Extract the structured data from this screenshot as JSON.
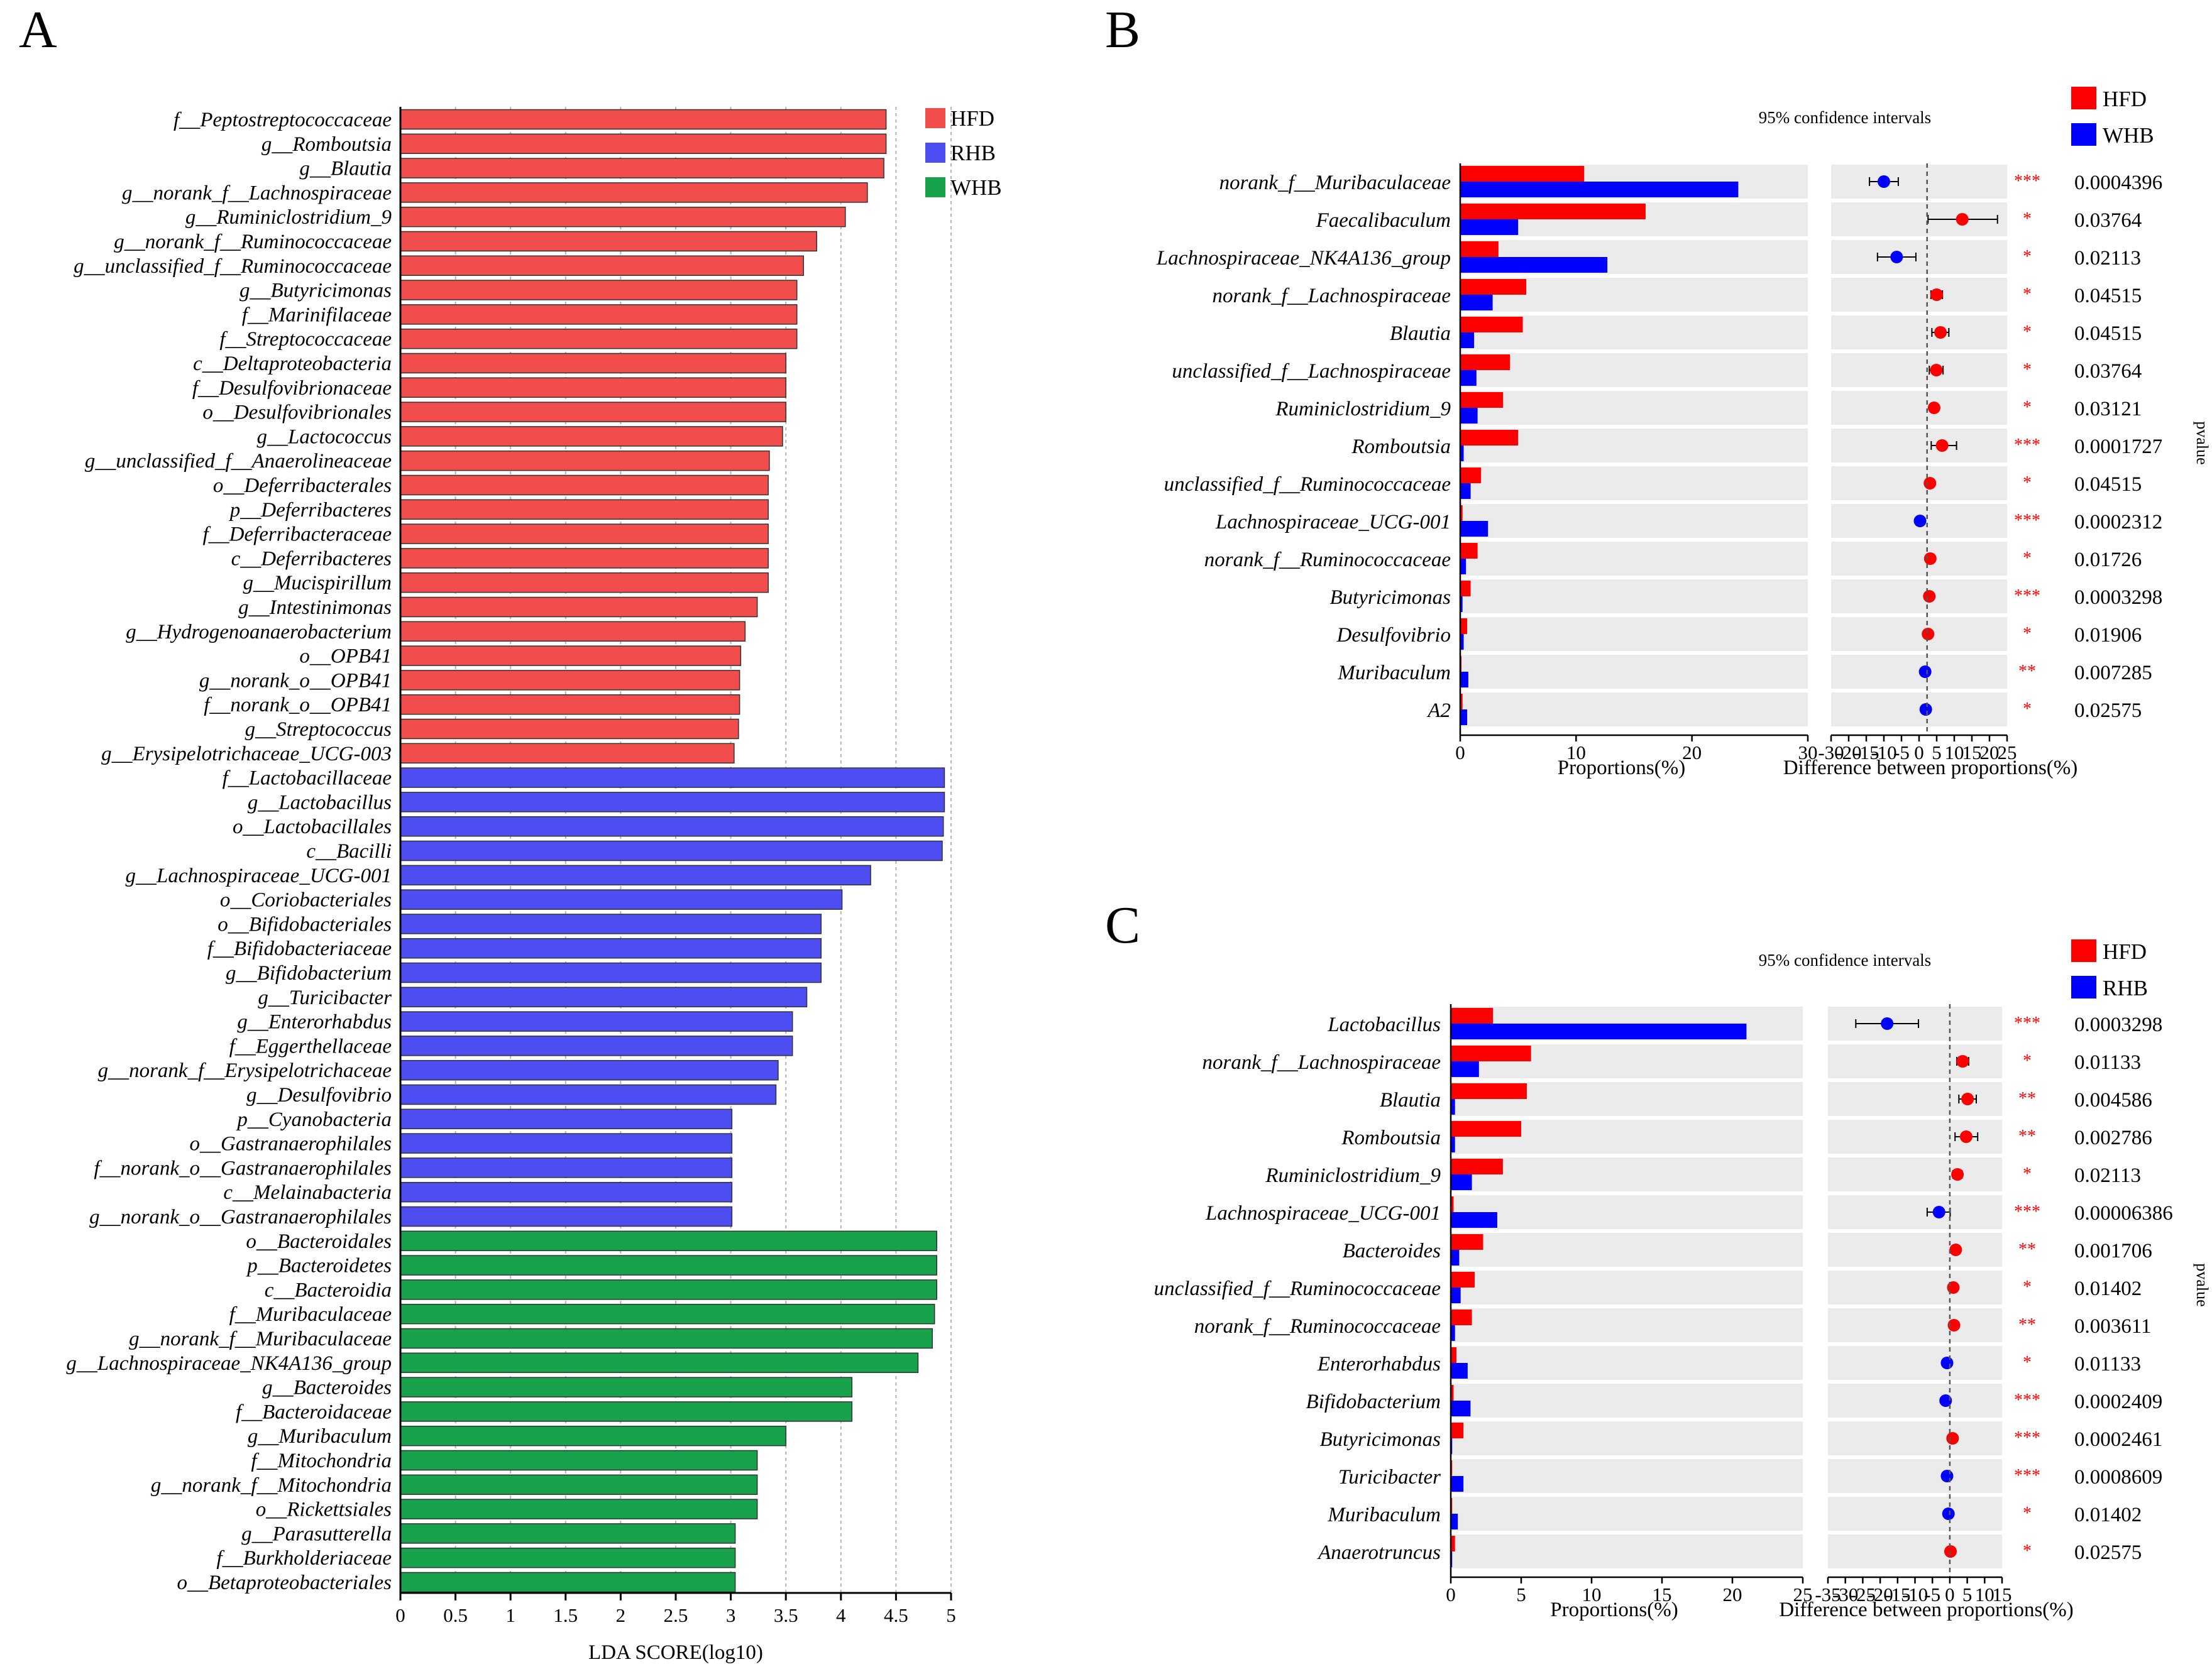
{
  "colors": {
    "HFD_A": "#f24d4d",
    "RHB_A": "#4d4df2",
    "WHB_A": "#18a24b",
    "HFD": "#ff0000",
    "RHB": "#0000ff",
    "WHB": "#0000ff",
    "stripe": "#ebebeb",
    "star": "#ff0000"
  },
  "chart_data": [
    {
      "panel": "A",
      "type": "bar",
      "orientation": "horizontal",
      "xlabel": "LDA SCORE(log10)",
      "xlim": [
        0,
        5
      ],
      "xticks": [
        "0",
        "0.5",
        "1",
        "1.5",
        "2",
        "2.5",
        "3",
        "3.5",
        "4",
        "4.5",
        "5"
      ],
      "grid": "vertical dashed",
      "legend": {
        "position": "top-right",
        "entries": [
          "HFD",
          "RHB",
          "WHB"
        ]
      },
      "series": [
        {
          "name": "HFD",
          "categories": [
            "f__Peptostreptococcaceae",
            "g__Romboutsia",
            "g__Blautia",
            "g__norank_f__Lachnospiraceae",
            "g__Ruminiclostridium_9",
            "g__norank_f__Ruminococcaceae",
            "g__unclassified_f__Ruminococcaceae",
            "g__Butyricimonas",
            "f__Marinifilaceae",
            "f__Streptococcaceae",
            "c__Deltaproteobacteria",
            "f__Desulfovibrionaceae",
            "o__Desulfovibrionales",
            "g__Lactococcus",
            "g__unclassified_f__Anaerolineaceae",
            "o__Deferribacterales",
            "p__Deferribacteres",
            "f__Deferribacteraceae",
            "c__Deferribacteres",
            "g__Mucispirillum",
            "g__Intestinimonas",
            "g__Hydrogenoanaerobacterium",
            "o__OPB41",
            "g__norank_o__OPB41",
            "f__norank_o__OPB41",
            "g__Streptococcus",
            "g__Erysipelotrichaceae_UCG-003"
          ],
          "values": [
            4.41,
            4.41,
            4.39,
            4.24,
            4.04,
            3.78,
            3.66,
            3.6,
            3.6,
            3.6,
            3.5,
            3.5,
            3.5,
            3.47,
            3.35,
            3.34,
            3.34,
            3.34,
            3.34,
            3.34,
            3.24,
            3.13,
            3.09,
            3.08,
            3.08,
            3.07,
            3.03
          ]
        },
        {
          "name": "RHB",
          "categories": [
            "f__Lactobacillaceae",
            "g__Lactobacillus",
            "o__Lactobacillales",
            "c__Bacilli",
            "g__Lachnospiraceae_UCG-001",
            "o__Coriobacteriales",
            "o__Bifidobacteriales",
            "f__Bifidobacteriaceae",
            "g__Bifidobacterium",
            "g__Turicibacter",
            "g__Enterorhabdus",
            "f__Eggerthellaceae",
            "g__norank_f__Erysipelotrichaceae",
            "g__Desulfovibrio",
            "p__Cyanobacteria",
            "o__Gastranaerophilales",
            "f__norank_o__Gastranaerophilales",
            "c__Melainabacteria",
            "g__norank_o__Gastranaerophilales"
          ],
          "values": [
            4.94,
            4.94,
            4.93,
            4.92,
            4.27,
            4.01,
            3.82,
            3.82,
            3.82,
            3.69,
            3.56,
            3.56,
            3.43,
            3.41,
            3.01,
            3.01,
            3.01,
            3.01,
            3.01
          ]
        },
        {
          "name": "WHB",
          "categories": [
            "o__Bacteroidales",
            "p__Bacteroidetes",
            "c__Bacteroidia",
            "f__Muribaculaceae",
            "g__norank_f__Muribaculaceae",
            "g__Lachnospiraceae_NK4A136_group",
            "g__Bacteroides",
            "f__Bacteroidaceae",
            "g__Muribaculum",
            "f__Mitochondria",
            "g__norank_f__Mitochondria",
            "o__Rickettsiales",
            "g__Parasutterella",
            "f__Burkholderiaceae",
            "o__Betaproteobacteriales"
          ],
          "values": [
            4.87,
            4.87,
            4.87,
            4.85,
            4.83,
            4.7,
            4.1,
            4.1,
            3.5,
            3.24,
            3.24,
            3.24,
            3.04,
            3.04,
            3.04
          ]
        }
      ]
    },
    {
      "panel": "B",
      "type": "bar",
      "orientation": "horizontal",
      "legend": {
        "position": "top-right",
        "entries": [
          "HFD",
          "WHB"
        ]
      },
      "ci_title": "95% confidence intervals",
      "prop_xlabel": "Proportions(%)",
      "prop_xlim": [
        0,
        30
      ],
      "prop_xticks": [
        "0",
        "10",
        "20",
        "30"
      ],
      "diff_xlabel": "Difference between proportions(%)",
      "diff_xlim": [
        -30,
        25
      ],
      "diff_xticks": [
        "-30",
        "-20",
        "-15",
        "-10",
        "-5",
        "0",
        "5",
        "10",
        "15",
        "20",
        "25"
      ],
      "pvalue_label": "pvalue",
      "categories": [
        "norank_f__Muribaculaceae",
        "Faecalibaculum",
        "Lachnospiraceae_NK4A136_group",
        "norank_f__Lachnospiraceae",
        "Blautia",
        "unclassified_f__Lachnospiraceae",
        "Ruminiclostridium_9",
        "Romboutsia",
        "unclassified_f__Ruminococcaceae",
        "Lachnospiraceae_UCG-001",
        "norank_f__Ruminococcaceae",
        "Butyricimonas",
        "Desulfovibrio",
        "Muribaculum",
        "A2"
      ],
      "series": [
        {
          "name": "HFD",
          "values": [
            10.7,
            16.0,
            3.3,
            5.7,
            5.4,
            4.3,
            3.7,
            5.0,
            1.8,
            0.2,
            1.5,
            0.9,
            0.6,
            0.1,
            0.2
          ]
        },
        {
          "name": "WHB",
          "values": [
            24.0,
            5.0,
            12.7,
            2.8,
            1.2,
            1.4,
            1.5,
            0.3,
            0.9,
            2.4,
            0.5,
            0.2,
            0.3,
            0.7,
            0.6
          ]
        }
      ],
      "diff": [
        -13.5,
        11.0,
        -9.5,
        3.0,
        4.2,
        2.9,
        2.2,
        4.7,
        0.9,
        -2.2,
        1.0,
        0.7,
        0.3,
        -0.6,
        -0.4
      ],
      "ci_low": [
        -18.0,
        0.3,
        -15.5,
        1.2,
        1.5,
        0.7,
        1.0,
        1.3,
        0.5,
        -3.2,
        0.5,
        0.4,
        0.1,
        -1.1,
        -0.8
      ],
      "ci_high": [
        -9.0,
        22.0,
        -3.5,
        4.8,
        6.8,
        5.0,
        3.4,
        9.2,
        1.3,
        -1.2,
        1.5,
        1.0,
        0.5,
        -0.1,
        0.0
      ],
      "stars": [
        "***",
        "*",
        "*",
        "*",
        "*",
        "*",
        "*",
        "***",
        "*",
        "***",
        "*",
        "***",
        "*",
        "**",
        "*"
      ],
      "pvalues": [
        "0.0004396",
        "0.03764",
        "0.02113",
        "0.04515",
        "0.04515",
        "0.03764",
        "0.03121",
        "0.0001727",
        "0.04515",
        "0.0002312",
        "0.01726",
        "0.0003298",
        "0.01906",
        "0.007285",
        "0.02575"
      ]
    },
    {
      "panel": "C",
      "type": "bar",
      "orientation": "horizontal",
      "legend": {
        "position": "top-right",
        "entries": [
          "HFD",
          "RHB"
        ]
      },
      "ci_title": "95% confidence intervals",
      "prop_xlabel": "Proportions(%)",
      "prop_xlim": [
        0,
        25
      ],
      "prop_xticks": [
        "0",
        "5",
        "10",
        "15",
        "20",
        "25"
      ],
      "diff_xlabel": "Difference between proportions(%)",
      "diff_xlim": [
        -35,
        15
      ],
      "diff_xticks": [
        "-35",
        "-30",
        "-25",
        "-20",
        "-15",
        "-10",
        "-5",
        "0",
        "5",
        "10",
        "15"
      ],
      "pvalue_label": "pvalue",
      "categories": [
        "Lactobacillus",
        "norank_f__Lachnospiraceae",
        "Blautia",
        "Romboutsia",
        "Ruminiclostridium_9",
        "Lachnospiraceae_UCG-001",
        "Bacteroides",
        "unclassified_f__Ruminococcaceae",
        "norank_f__Ruminococcaceae",
        "Enterorhabdus",
        "Bifidobacterium",
        "Butyricimonas",
        "Turicibacter",
        "Muribaculum",
        "Anaerotruncus"
      ],
      "series": [
        {
          "name": "HFD",
          "values": [
            3.0,
            5.7,
            5.4,
            5.0,
            3.7,
            0.2,
            2.3,
            1.7,
            1.5,
            0.4,
            0.2,
            0.9,
            0.1,
            0.1,
            0.3
          ]
        },
        {
          "name": "RHB",
          "values": [
            21.0,
            2.0,
            0.3,
            0.3,
            1.5,
            3.3,
            0.6,
            0.7,
            0.3,
            1.2,
            1.4,
            0.1,
            0.9,
            0.5,
            0.1
          ]
        }
      ],
      "diff": [
        -18.0,
        3.7,
        5.1,
        4.7,
        2.2,
        -3.1,
        1.7,
        1.0,
        1.2,
        -0.8,
        -1.2,
        0.8,
        -0.8,
        -0.4,
        0.2
      ],
      "ci_low": [
        -27.0,
        2.0,
        2.6,
        1.5,
        0.9,
        -6.5,
        1.0,
        0.4,
        0.5,
        -1.3,
        -2.0,
        0.5,
        -1.2,
        -0.7,
        0.1
      ],
      "ci_high": [
        -9.0,
        5.4,
        7.6,
        8.0,
        3.5,
        0.1,
        2.4,
        1.6,
        1.9,
        -0.3,
        -0.4,
        1.1,
        -0.4,
        -0.1,
        0.3
      ],
      "stars": [
        "***",
        "*",
        "**",
        "**",
        "*",
        "***",
        "**",
        "*",
        "**",
        "*",
        "***",
        "***",
        "***",
        "*",
        "*"
      ],
      "pvalues": [
        "0.0003298",
        "0.01133",
        "0.004586",
        "0.002786",
        "0.02113",
        "0.00006386",
        "0.001706",
        "0.01402",
        "0.003611",
        "0.01133",
        "0.0002409",
        "0.0002461",
        "0.0008609",
        "0.01402",
        "0.02575"
      ]
    }
  ]
}
